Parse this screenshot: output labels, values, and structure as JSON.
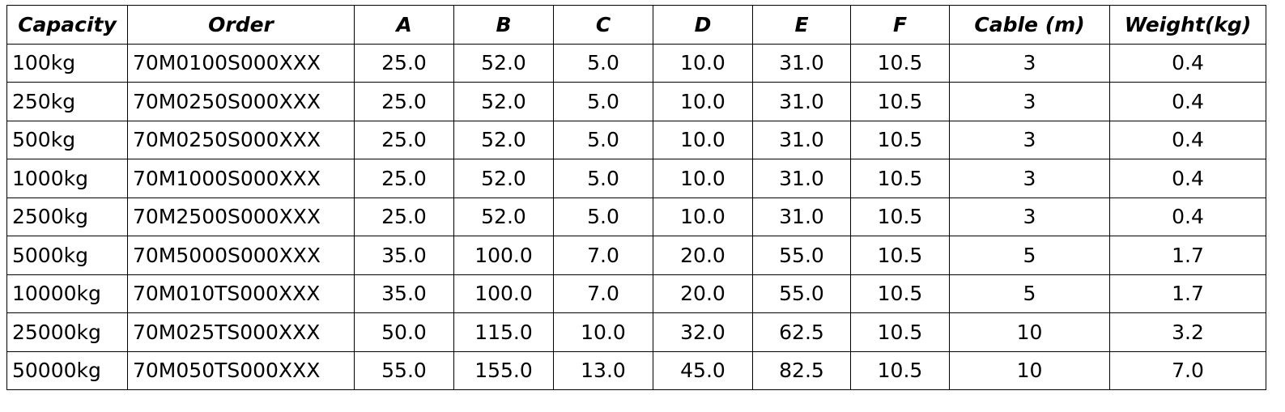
{
  "table": {
    "header": [
      "Capacity",
      "Order",
      "A",
      "B",
      "C",
      "D",
      "E",
      "F",
      "Cable (m)",
      "Weight(kg)"
    ],
    "rows": [
      [
        "100kg",
        "70M0100S000XXX",
        "25.0",
        "52.0",
        "5.0",
        "10.0",
        "31.0",
        "10.5",
        "3",
        "0.4"
      ],
      [
        "250kg",
        "70M0250S000XXX",
        "25.0",
        "52.0",
        "5.0",
        "10.0",
        "31.0",
        "10.5",
        "3",
        "0.4"
      ],
      [
        "500kg",
        "70M0250S000XXX",
        "25.0",
        "52.0",
        "5.0",
        "10.0",
        "31.0",
        "10.5",
        "3",
        "0.4"
      ],
      [
        "1000kg",
        "70M1000S000XXX",
        "25.0",
        "52.0",
        "5.0",
        "10.0",
        "31.0",
        "10.5",
        "3",
        "0.4"
      ],
      [
        "2500kg",
        "70M2500S000XXX",
        "25.0",
        "52.0",
        "5.0",
        "10.0",
        "31.0",
        "10.5",
        "3",
        "0.4"
      ],
      [
        "5000kg",
        "70M5000S000XXX",
        "35.0",
        "100.0",
        "7.0",
        "20.0",
        "55.0",
        "10.5",
        "5",
        "1.7"
      ],
      [
        "10000kg",
        "70M010TS000XXX",
        "35.0",
        "100.0",
        "7.0",
        "20.0",
        "55.0",
        "10.5",
        "5",
        "1.7"
      ],
      [
        "25000kg",
        "70M025TS000XXX",
        "50.0",
        "115.0",
        "10.0",
        "32.0",
        "62.5",
        "10.5",
        "10",
        "3.2"
      ],
      [
        "50000kg",
        "70M050TS000XXX",
        "55.0",
        "155.0",
        "13.0",
        "45.0",
        "82.5",
        "10.5",
        "10",
        "7.0"
      ]
    ]
  }
}
